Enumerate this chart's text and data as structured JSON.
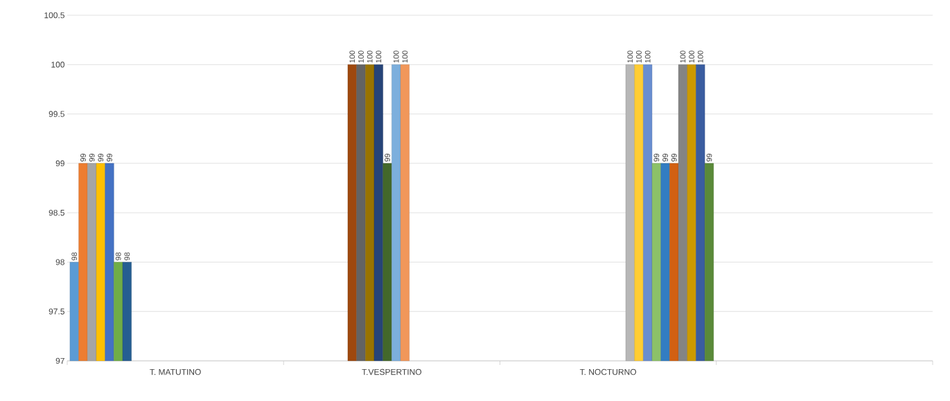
{
  "chart_data": {
    "type": "bar",
    "categories": [
      "T. MATUTINO",
      "T.VESPERTINO",
      "T. NOCTURNO",
      null
    ],
    "series": [
      {
        "color": "#5b9bd5",
        "values": [
          98,
          null,
          null,
          null
        ]
      },
      {
        "color": "#ed7d31",
        "values": [
          99,
          null,
          null,
          null
        ]
      },
      {
        "color": "#a5a5a5",
        "values": [
          99,
          null,
          null,
          null
        ]
      },
      {
        "color": "#ffc000",
        "values": [
          99,
          null,
          null,
          null
        ]
      },
      {
        "color": "#4472c4",
        "values": [
          99,
          null,
          null,
          null
        ]
      },
      {
        "color": "#70ad47",
        "values": [
          98,
          null,
          null,
          null
        ]
      },
      {
        "color": "#255e91",
        "values": [
          98,
          null,
          null,
          null
        ]
      },
      {
        "color": "#9e480e",
        "values": [
          null,
          100,
          null,
          null
        ]
      },
      {
        "color": "#636363",
        "values": [
          null,
          100,
          null,
          null
        ]
      },
      {
        "color": "#997300",
        "values": [
          null,
          100,
          null,
          null
        ]
      },
      {
        "color": "#264478",
        "values": [
          null,
          100,
          null,
          null
        ]
      },
      {
        "color": "#43682b",
        "values": [
          null,
          99,
          null,
          null
        ]
      },
      {
        "color": "#7cafdd",
        "values": [
          null,
          100,
          null,
          null
        ]
      },
      {
        "color": "#f1975a",
        "values": [
          null,
          100,
          null,
          null
        ]
      },
      {
        "color": "#b7b7b7",
        "values": [
          null,
          null,
          100,
          null
        ]
      },
      {
        "color": "#ffcd33",
        "values": [
          null,
          null,
          100,
          null
        ]
      },
      {
        "color": "#698ed0",
        "values": [
          null,
          null,
          100,
          null
        ]
      },
      {
        "color": "#8cc168",
        "values": [
          null,
          null,
          99,
          null
        ]
      },
      {
        "color": "#327dc2",
        "values": [
          null,
          null,
          99,
          null
        ]
      },
      {
        "color": "#d26012",
        "values": [
          null,
          null,
          99,
          null
        ]
      },
      {
        "color": "#848484",
        "values": [
          null,
          null,
          100,
          null
        ]
      },
      {
        "color": "#cc9a00",
        "values": [
          null,
          null,
          100,
          null
        ]
      },
      {
        "color": "#3a5da0",
        "values": [
          null,
          null,
          100,
          null
        ]
      },
      {
        "color": "#5a8a39",
        "values": [
          null,
          null,
          99,
          null
        ]
      }
    ],
    "ylim": [
      97,
      100.5
    ],
    "yticks": [
      97,
      97.5,
      98,
      98.5,
      99,
      99.5,
      100,
      100.5
    ],
    "grid": "y",
    "data_labels": true
  }
}
